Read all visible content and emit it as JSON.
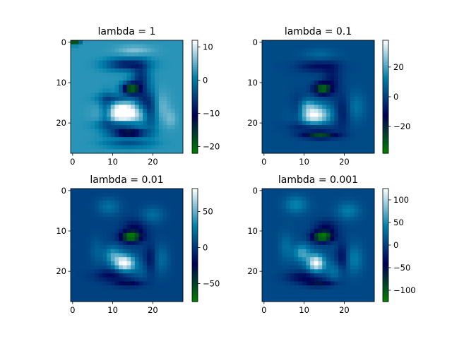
{
  "figure": {
    "background": "#ffffff",
    "colormap": "ocean",
    "grid": "hidden"
  },
  "chart_data": [
    {
      "type": "heatmap",
      "title": "lambda = 1",
      "image_size": [
        28,
        28
      ],
      "xlim": [
        -0.5,
        27.5
      ],
      "ylim": [
        27.5,
        -0.5
      ],
      "xticks": [
        0,
        10,
        20
      ],
      "yticks": [
        0,
        10,
        20
      ],
      "colorbar": {
        "vmin": -22,
        "vmax": 12,
        "ticks": [
          10,
          0,
          -10,
          -20
        ]
      },
      "estimated_field": {
        "base": 2.5,
        "blobs": [
          {
            "x": 12.5,
            "y": 17.5,
            "sx": 3.2,
            "sy": 1.8,
            "a": 14
          },
          {
            "x": 15.5,
            "y": 2.0,
            "sx": 3.0,
            "sy": 0.8,
            "a": 4
          },
          {
            "x": 22.0,
            "y": 16.0,
            "sx": 1.5,
            "sy": 2.5,
            "a": 3
          },
          {
            "x": 24.5,
            "y": 19.0,
            "sx": 1.0,
            "sy": 1.5,
            "a": 3
          },
          {
            "x": 13.5,
            "y": 5.5,
            "sx": 3.5,
            "sy": 1.0,
            "a": -11
          },
          {
            "x": 17.0,
            "y": 9.0,
            "sx": 1.5,
            "sy": 2.5,
            "a": -9
          },
          {
            "x": 8.5,
            "y": 17.0,
            "sx": 1.2,
            "sy": 2.5,
            "a": -8
          },
          {
            "x": 11.0,
            "y": 14.0,
            "sx": 3.0,
            "sy": 0.8,
            "a": -7
          },
          {
            "x": 17.5,
            "y": 14.5,
            "sx": 1.5,
            "sy": 2.0,
            "a": -7
          },
          {
            "x": 12.0,
            "y": 20.5,
            "sx": 3.5,
            "sy": 0.8,
            "a": -10
          },
          {
            "x": 19.5,
            "y": 17.0,
            "sx": 1.2,
            "sy": 3.0,
            "a": -8
          },
          {
            "x": 14.0,
            "y": 25.0,
            "sx": 4.0,
            "sy": 0.8,
            "a": -6
          },
          {
            "x": 14.5,
            "y": 11.5,
            "sx": 1.5,
            "sy": 1.0,
            "a": -22
          },
          {
            "x": 14.0,
            "y": 22.5,
            "sx": 3.0,
            "sy": 0.6,
            "a": -20
          },
          {
            "x": 0.5,
            "y": 0.0,
            "sx": 0.8,
            "sy": 0.4,
            "a": -25
          }
        ]
      }
    },
    {
      "type": "heatmap",
      "title": "lambda = 0.1",
      "image_size": [
        28,
        28
      ],
      "xlim": [
        -0.5,
        27.5
      ],
      "ylim": [
        27.5,
        -0.5
      ],
      "xticks": [
        0,
        10,
        20
      ],
      "yticks": [
        0,
        10,
        20
      ],
      "colorbar": {
        "vmin": -38,
        "vmax": 38,
        "ticks": [
          20,
          0,
          -20
        ]
      },
      "estimated_field": {
        "base": 2,
        "blobs": [
          {
            "x": 12.5,
            "y": 18.0,
            "sx": 2.8,
            "sy": 1.8,
            "a": 36
          },
          {
            "x": 10.5,
            "y": 15.5,
            "sx": 1.5,
            "sy": 1.0,
            "a": 10
          },
          {
            "x": 23.0,
            "y": 16.0,
            "sx": 1.5,
            "sy": 2.5,
            "a": 8
          },
          {
            "x": 14.0,
            "y": 3.0,
            "sx": 3.0,
            "sy": 1.0,
            "a": 6
          },
          {
            "x": 13.5,
            "y": 6.0,
            "sx": 3.5,
            "sy": 1.0,
            "a": -12
          },
          {
            "x": 17.0,
            "y": 9.5,
            "sx": 1.5,
            "sy": 2.5,
            "a": -10
          },
          {
            "x": 8.5,
            "y": 17.0,
            "sx": 1.2,
            "sy": 2.5,
            "a": -10
          },
          {
            "x": 12.0,
            "y": 21.0,
            "sx": 3.5,
            "sy": 0.8,
            "a": -12
          },
          {
            "x": 19.5,
            "y": 17.5,
            "sx": 1.2,
            "sy": 3.0,
            "a": -10
          },
          {
            "x": 14.5,
            "y": 11.5,
            "sx": 1.5,
            "sy": 1.0,
            "a": -36
          },
          {
            "x": 14.0,
            "y": 23.0,
            "sx": 3.0,
            "sy": 0.6,
            "a": -30
          }
        ]
      }
    },
    {
      "type": "heatmap",
      "title": "lambda = 0.01",
      "image_size": [
        28,
        28
      ],
      "xlim": [
        -0.5,
        27.5
      ],
      "ylim": [
        27.5,
        -0.5
      ],
      "xticks": [
        0,
        10,
        20
      ],
      "yticks": [
        0,
        10,
        20
      ],
      "colorbar": {
        "vmin": -75,
        "vmax": 82,
        "ticks": [
          50,
          0,
          -50
        ]
      },
      "estimated_field": {
        "base": 4,
        "blobs": [
          {
            "x": 13.0,
            "y": 18.0,
            "sx": 1.8,
            "sy": 1.5,
            "a": 80
          },
          {
            "x": 10.0,
            "y": 16.0,
            "sx": 1.5,
            "sy": 1.5,
            "a": 35
          },
          {
            "x": 9.0,
            "y": 4.0,
            "sx": 2.0,
            "sy": 1.5,
            "a": 20
          },
          {
            "x": 20.0,
            "y": 6.0,
            "sx": 2.0,
            "sy": 1.5,
            "a": 18
          },
          {
            "x": 22.0,
            "y": 17.0,
            "sx": 1.5,
            "sy": 2.5,
            "a": 18
          },
          {
            "x": 6.0,
            "y": 15.0,
            "sx": 1.2,
            "sy": 2.5,
            "a": 12
          },
          {
            "x": 17.0,
            "y": 20.0,
            "sx": 1.5,
            "sy": 1.5,
            "a": 12
          },
          {
            "x": 15.5,
            "y": 9.5,
            "sx": 2.0,
            "sy": 1.5,
            "a": -25
          },
          {
            "x": 10.0,
            "y": 21.0,
            "sx": 3.0,
            "sy": 1.0,
            "a": -25
          },
          {
            "x": 19.5,
            "y": 17.0,
            "sx": 1.0,
            "sy": 2.5,
            "a": -22
          },
          {
            "x": 14.5,
            "y": 11.5,
            "sx": 1.8,
            "sy": 0.9,
            "a": -75
          },
          {
            "x": 14.0,
            "y": 23.0,
            "sx": 2.5,
            "sy": 0.6,
            "a": -30
          }
        ]
      }
    },
    {
      "type": "heatmap",
      "title": "lambda = 0.001",
      "image_size": [
        28,
        28
      ],
      "xlim": [
        -0.5,
        27.5
      ],
      "ylim": [
        27.5,
        -0.5
      ],
      "xticks": [
        0,
        10,
        20
      ],
      "yticks": [
        0,
        10,
        20
      ],
      "colorbar": {
        "vmin": -125,
        "vmax": 125,
        "ticks": [
          100,
          50,
          0,
          -50,
          -100
        ]
      },
      "estimated_field": {
        "base": 5,
        "blobs": [
          {
            "x": 13.0,
            "y": 18.0,
            "sx": 1.5,
            "sy": 1.5,
            "a": 120
          },
          {
            "x": 9.5,
            "y": 15.5,
            "sx": 1.5,
            "sy": 1.5,
            "a": 60
          },
          {
            "x": 8.0,
            "y": 3.5,
            "sx": 2.0,
            "sy": 1.5,
            "a": 40
          },
          {
            "x": 21.0,
            "y": 5.0,
            "sx": 2.0,
            "sy": 1.5,
            "a": 35
          },
          {
            "x": 22.5,
            "y": 17.0,
            "sx": 1.5,
            "sy": 2.5,
            "a": 35
          },
          {
            "x": 5.5,
            "y": 14.0,
            "sx": 1.2,
            "sy": 2.5,
            "a": 25
          },
          {
            "x": 17.5,
            "y": 20.0,
            "sx": 1.5,
            "sy": 1.5,
            "a": 30
          },
          {
            "x": 15.5,
            "y": 9.5,
            "sx": 2.0,
            "sy": 1.5,
            "a": -45
          },
          {
            "x": 10.0,
            "y": 21.5,
            "sx": 3.0,
            "sy": 1.0,
            "a": -45
          },
          {
            "x": 19.5,
            "y": 16.5,
            "sx": 1.0,
            "sy": 2.5,
            "a": -40
          },
          {
            "x": 14.5,
            "y": 11.5,
            "sx": 1.8,
            "sy": 0.9,
            "a": -120
          },
          {
            "x": 14.0,
            "y": 23.0,
            "sx": 2.5,
            "sy": 0.6,
            "a": -55
          }
        ]
      }
    }
  ]
}
